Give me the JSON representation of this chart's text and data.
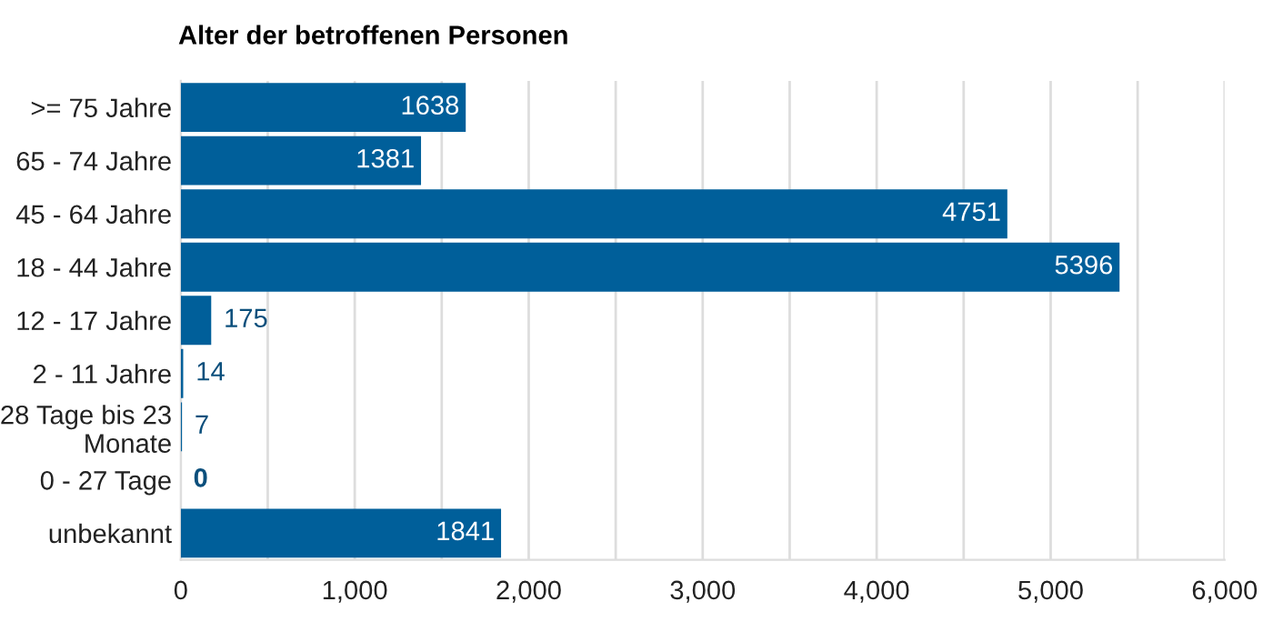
{
  "chart_data": {
    "type": "bar",
    "orientation": "horizontal",
    "title": "Alter der betroffenen Personen",
    "categories": [
      ">= 75 Jahre",
      "65 - 74 Jahre",
      "45 - 64 Jahre",
      "18 - 44 Jahre",
      "12 - 17 Jahre",
      "2 - 11 Jahre",
      "28 Tage bis 23 Monate",
      "0 - 27 Tage",
      "unbekannt"
    ],
    "values": [
      1638,
      1381,
      4751,
      5396,
      175,
      14,
      7,
      0,
      1841
    ],
    "color": "#005f9a",
    "xlim": [
      0,
      6000
    ],
    "xticks": [
      {
        "value": 0,
        "label": "0"
      },
      {
        "value": 500,
        "label": null
      },
      {
        "value": 1000,
        "label": "1,000"
      },
      {
        "value": 1500,
        "label": null
      },
      {
        "value": 2000,
        "label": "2,000"
      },
      {
        "value": 2500,
        "label": null
      },
      {
        "value": 3000,
        "label": "3,000"
      },
      {
        "value": 3500,
        "label": null
      },
      {
        "value": 4000,
        "label": "4,000"
      },
      {
        "value": 4500,
        "label": null
      },
      {
        "value": 5000,
        "label": "5,000"
      },
      {
        "value": 5500,
        "label": null
      },
      {
        "value": 6000,
        "label": "6,000"
      }
    ],
    "grid": "x",
    "data_labels": true
  }
}
